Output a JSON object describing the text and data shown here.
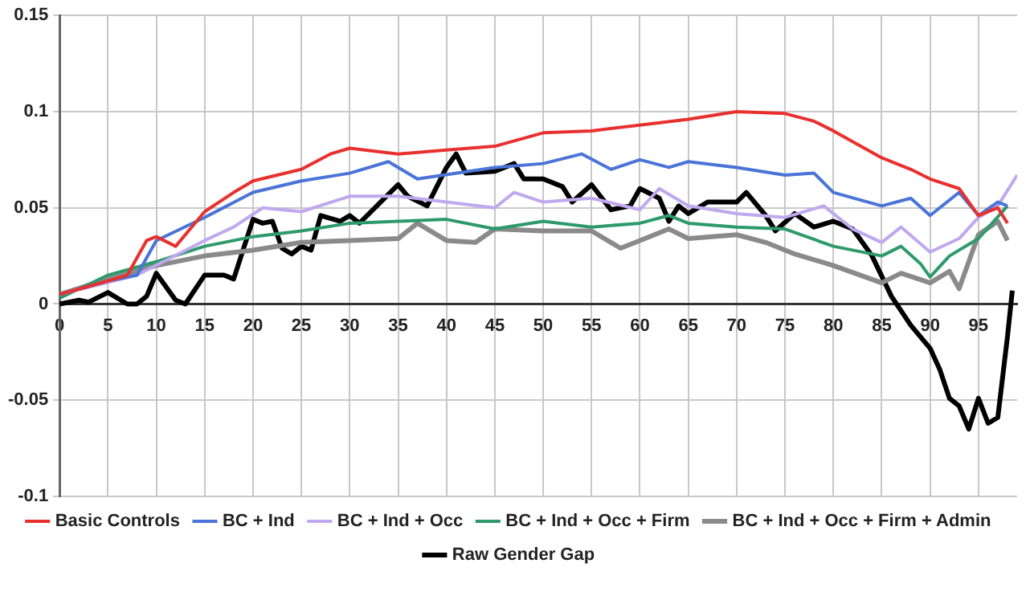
{
  "chart_data": {
    "type": "line",
    "xlim": [
      0,
      99
    ],
    "xticks": [
      0,
      5,
      10,
      15,
      20,
      25,
      30,
      35,
      40,
      45,
      50,
      55,
      60,
      65,
      70,
      75,
      80,
      85,
      90,
      95
    ],
    "ylim": [
      -0.1,
      0.15
    ],
    "yticks": [
      -0.1,
      -0.05,
      0,
      0.05,
      0.1,
      0.15
    ],
    "grid": true,
    "legend": "bottom",
    "marker": "none",
    "line_style": "solid",
    "series": [
      {
        "name": "Basic Controls",
        "color": "#e8312f",
        "x": [
          0,
          5,
          7,
          9,
          10,
          12,
          15,
          18,
          20,
          25,
          28,
          30,
          35,
          40,
          45,
          50,
          55,
          60,
          65,
          70,
          75,
          78,
          80,
          85,
          88,
          90,
          93,
          95,
          97,
          98
        ],
        "values": [
          0.005,
          0.012,
          0.015,
          0.033,
          0.035,
          0.03,
          0.048,
          0.058,
          0.064,
          0.07,
          0.078,
          0.081,
          0.078,
          0.08,
          0.082,
          0.089,
          0.09,
          0.093,
          0.096,
          0.1,
          0.099,
          0.095,
          0.09,
          0.076,
          0.07,
          0.065,
          0.06,
          0.046,
          0.05,
          0.042
        ]
      },
      {
        "name": "BC + Ind",
        "color": "#4a74d8",
        "x": [
          0,
          5,
          8,
          10,
          15,
          20,
          25,
          30,
          34,
          37,
          45,
          50,
          54,
          57,
          60,
          63,
          65,
          70,
          75,
          78,
          80,
          85,
          88,
          90,
          93,
          95,
          97,
          98
        ],
        "values": [
          0.005,
          0.012,
          0.015,
          0.033,
          0.045,
          0.058,
          0.064,
          0.068,
          0.074,
          0.065,
          0.071,
          0.073,
          0.078,
          0.07,
          0.075,
          0.071,
          0.074,
          0.071,
          0.067,
          0.068,
          0.058,
          0.051,
          0.055,
          0.046,
          0.058,
          0.046,
          0.053,
          0.051
        ]
      },
      {
        "name": "BC + Ind + Occ",
        "color": "#c0a8ee",
        "x": [
          0,
          8,
          15,
          18,
          21,
          25,
          30,
          35,
          40,
          45,
          47,
          50,
          55,
          60,
          62,
          65,
          70,
          75,
          79,
          82,
          85,
          87,
          90,
          93,
          95,
          97,
          99
        ],
        "values": [
          0.005,
          0.015,
          0.033,
          0.04,
          0.05,
          0.048,
          0.056,
          0.056,
          0.053,
          0.05,
          0.058,
          0.053,
          0.055,
          0.049,
          0.06,
          0.051,
          0.047,
          0.045,
          0.051,
          0.039,
          0.032,
          0.04,
          0.027,
          0.034,
          0.045,
          0.051,
          0.067
        ]
      },
      {
        "name": "BC + Ind + Occ + Firm",
        "color": "#2e9a6c",
        "x": [
          0,
          5,
          10,
          15,
          20,
          25,
          30,
          35,
          40,
          45,
          50,
          55,
          60,
          63,
          65,
          70,
          75,
          80,
          85,
          87,
          89,
          90,
          92,
          95,
          98
        ],
        "values": [
          0.003,
          0.015,
          0.022,
          0.03,
          0.035,
          0.038,
          0.042,
          0.043,
          0.044,
          0.039,
          0.043,
          0.04,
          0.042,
          0.046,
          0.042,
          0.04,
          0.039,
          0.03,
          0.025,
          0.03,
          0.021,
          0.014,
          0.025,
          0.034,
          0.051
        ]
      },
      {
        "name": "BC + Ind + Occ + Firm + Admin",
        "color": "#8a8a8a",
        "x": [
          0,
          5,
          10,
          15,
          20,
          25,
          30,
          35,
          37,
          40,
          43,
          45,
          50,
          55,
          58,
          60,
          63,
          65,
          70,
          73,
          76,
          80,
          85,
          87,
          90,
          92,
          93,
          95,
          97,
          98
        ],
        "values": [
          0.005,
          0.013,
          0.02,
          0.025,
          0.028,
          0.032,
          0.033,
          0.034,
          0.042,
          0.033,
          0.032,
          0.039,
          0.038,
          0.038,
          0.029,
          0.033,
          0.039,
          0.034,
          0.036,
          0.032,
          0.026,
          0.02,
          0.011,
          0.016,
          0.011,
          0.017,
          0.008,
          0.036,
          0.043,
          0.033
        ]
      },
      {
        "name": "Raw Gender Gap",
        "color": "#000000",
        "x": [
          0,
          2,
          3,
          5,
          7,
          8,
          9,
          10,
          12,
          13,
          15,
          17,
          18,
          20,
          21,
          22,
          23,
          24,
          25,
          26,
          27,
          29,
          30,
          31,
          33,
          35,
          36,
          38,
          40,
          41,
          42,
          45,
          47,
          48,
          50,
          52,
          53,
          55,
          57,
          59,
          60,
          62,
          63,
          64,
          65,
          67,
          70,
          71,
          73,
          74,
          76,
          78,
          80,
          82,
          84,
          86,
          88,
          90,
          91,
          92,
          93,
          94,
          95,
          96,
          97,
          98,
          98.5
        ],
        "values": [
          0,
          0.002,
          0.001,
          0.006,
          0,
          0,
          0.004,
          0.016,
          0.002,
          0,
          0.015,
          0.015,
          0.013,
          0.044,
          0.042,
          0.043,
          0.029,
          0.026,
          0.03,
          0.028,
          0.046,
          0.043,
          0.046,
          0.042,
          0.052,
          0.062,
          0.056,
          0.051,
          0.071,
          0.078,
          0.068,
          0.069,
          0.073,
          0.065,
          0.065,
          0.061,
          0.053,
          0.062,
          0.049,
          0.051,
          0.06,
          0.055,
          0.043,
          0.051,
          0.047,
          0.053,
          0.053,
          0.058,
          0.046,
          0.038,
          0.047,
          0.04,
          0.043,
          0.039,
          0.025,
          0.004,
          -0.011,
          -0.023,
          -0.034,
          -0.049,
          -0.053,
          -0.065,
          -0.049,
          -0.062,
          -0.059,
          -0.017,
          0.007
        ]
      }
    ]
  }
}
